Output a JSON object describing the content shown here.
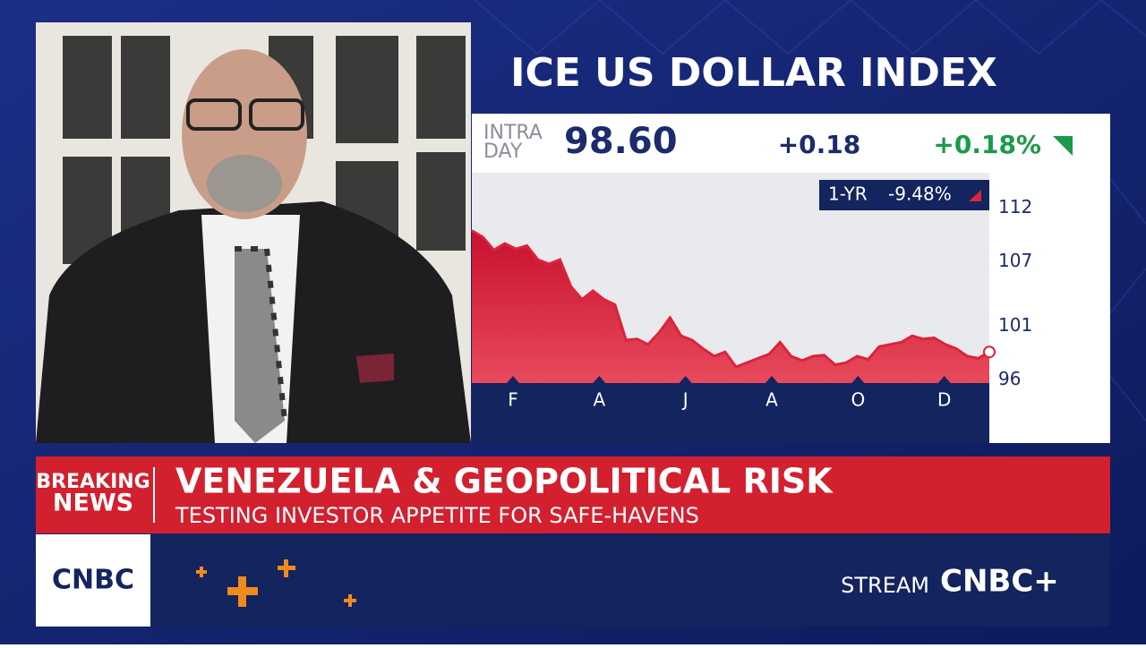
{
  "chart_data": {
    "type": "area",
    "title": "ICE US DOLLAR INDEX",
    "values": [
      109.9,
      109.3,
      108.1,
      108.7,
      108.2,
      108.5,
      107.2,
      106.8,
      107.2,
      104.7,
      103.5,
      104.3,
      103.5,
      103.0,
      99.7,
      99.8,
      99.3,
      100.4,
      101.8,
      100.1,
      99.7,
      98.9,
      98.2,
      98.6,
      97.2,
      97.6,
      98.0,
      98.4,
      99.5,
      98.2,
      97.8,
      98.2,
      98.3,
      97.4,
      97.6,
      98.2,
      97.9,
      99.1,
      99.3,
      99.5,
      100.1,
      99.8,
      99.9,
      99.3,
      98.9,
      98.2,
      98.0,
      98.6
    ],
    "color": "#d9253a",
    "ylim": [
      95.7,
      115.3
    ],
    "yticks": [
      96,
      101,
      107,
      112
    ],
    "month_labels": [
      "F",
      "A",
      "J",
      "A",
      "O",
      "D"
    ]
  },
  "quote": {
    "label_line1": "INTRA",
    "label_line2": "DAY",
    "price": "98.60",
    "change": "+0.18",
    "change_pct": "+0.18%",
    "period": "1-YR",
    "period_change": "-9.48%"
  },
  "banner": {
    "tag_line1": "BREAKING",
    "tag_line2": "NEWS",
    "headline": "VENEZUELA & GEOPOLITICAL RISK",
    "subhead": "TESTING INVESTOR APPETITE FOR SAFE-HAVENS"
  },
  "footer": {
    "logo": "CNBC",
    "stream": "STREAM",
    "brand": "CNBC+"
  }
}
